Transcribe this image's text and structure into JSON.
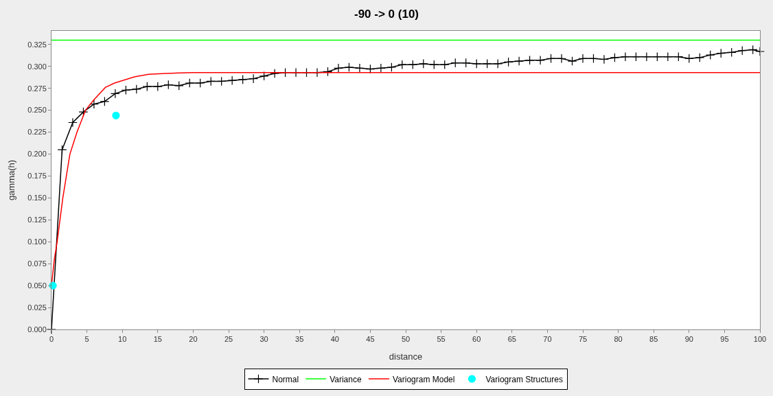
{
  "chart_data": {
    "type": "line",
    "title": "-90 -> 0 (10)",
    "xlabel": "distance",
    "ylabel": "gamma(h)",
    "xlim": [
      0,
      100
    ],
    "xticks": [
      0,
      5,
      10,
      15,
      20,
      25,
      30,
      35,
      40,
      45,
      50,
      55,
      60,
      65,
      70,
      75,
      80,
      85,
      90,
      95,
      100
    ],
    "ylim": [
      0,
      0.3405
    ],
    "yticks": [
      {
        "value": 0,
        "label": "0.000"
      },
      {
        "value": 0.025,
        "label": "0.025"
      },
      {
        "value": 0.05,
        "label": "0.050"
      },
      {
        "value": 0.075,
        "label": "0.075"
      },
      {
        "value": 0.1,
        "label": "0.100"
      },
      {
        "value": 0.125,
        "label": "0.125"
      },
      {
        "value": 0.15,
        "label": "0.150"
      },
      {
        "value": 0.175,
        "label": "0.175"
      },
      {
        "value": 0.2,
        "label": "0.200"
      },
      {
        "value": 0.225,
        "label": "0.225"
      },
      {
        "value": 0.25,
        "label": "0.250"
      },
      {
        "value": 0.275,
        "label": "0.275"
      },
      {
        "value": 0.3,
        "label": "0.300"
      },
      {
        "value": 0.325,
        "label": "0.325"
      }
    ],
    "legend": "bottom",
    "series": [
      {
        "name": "Normal",
        "color": "#000000",
        "marker": "cross",
        "x": [
          0,
          1.5,
          3,
          4.5,
          6,
          7.5,
          9,
          10.5,
          12,
          13.5,
          15,
          16.5,
          18,
          19.5,
          21,
          22.5,
          24,
          25.5,
          27,
          28.5,
          30,
          31.5,
          33,
          34.5,
          36,
          37.5,
          39,
          40.5,
          42,
          43.5,
          45,
          46.5,
          48,
          49.5,
          51,
          52.5,
          54,
          55.5,
          57,
          58.5,
          60,
          61.5,
          63,
          64.5,
          66,
          67.5,
          69,
          70.5,
          72,
          73.5,
          75,
          76.5,
          78,
          79.5,
          81,
          82.5,
          84,
          85.5,
          87,
          88.5,
          90,
          91.5,
          93,
          94.5,
          96,
          97.5,
          99,
          100
        ],
        "values": [
          0,
          0.205,
          0.236,
          0.248,
          0.257,
          0.26,
          0.269,
          0.273,
          0.274,
          0.277,
          0.277,
          0.279,
          0.278,
          0.281,
          0.281,
          0.283,
          0.283,
          0.284,
          0.285,
          0.286,
          0.289,
          0.292,
          0.293,
          0.293,
          0.293,
          0.293,
          0.294,
          0.298,
          0.299,
          0.298,
          0.297,
          0.298,
          0.299,
          0.302,
          0.302,
          0.303,
          0.302,
          0.302,
          0.304,
          0.304,
          0.303,
          0.303,
          0.303,
          0.305,
          0.306,
          0.307,
          0.307,
          0.309,
          0.309,
          0.306,
          0.309,
          0.309,
          0.308,
          0.31,
          0.311,
          0.311,
          0.311,
          0.311,
          0.311,
          0.311,
          0.309,
          0.31,
          0.313,
          0.315,
          0.316,
          0.318,
          0.319,
          0.317
        ]
      },
      {
        "name": "Variance",
        "color": "#00ff00",
        "marker": "none",
        "x": [
          0,
          100
        ],
        "values": [
          0.33,
          0.33
        ]
      },
      {
        "name": "Variogram Model",
        "color": "#ff0000",
        "marker": "none",
        "x": [
          0,
          0.4,
          0.8,
          1.2,
          1.6,
          2.0,
          2.6,
          3.6,
          4.8,
          6,
          7.6,
          8.9,
          11.7,
          13.7,
          16.2,
          20,
          100
        ],
        "values": [
          0.05,
          0.08,
          0.1,
          0.125,
          0.15,
          0.17,
          0.2,
          0.225,
          0.25,
          0.262,
          0.276,
          0.281,
          0.288,
          0.291,
          0.292,
          0.293,
          0.293
        ]
      },
      {
        "name": "Variogram Structures",
        "type": "scatter",
        "color": "#00ffff",
        "marker": "circle",
        "x": [
          0.2,
          9.1
        ],
        "values": [
          0.05,
          0.244
        ]
      }
    ]
  }
}
